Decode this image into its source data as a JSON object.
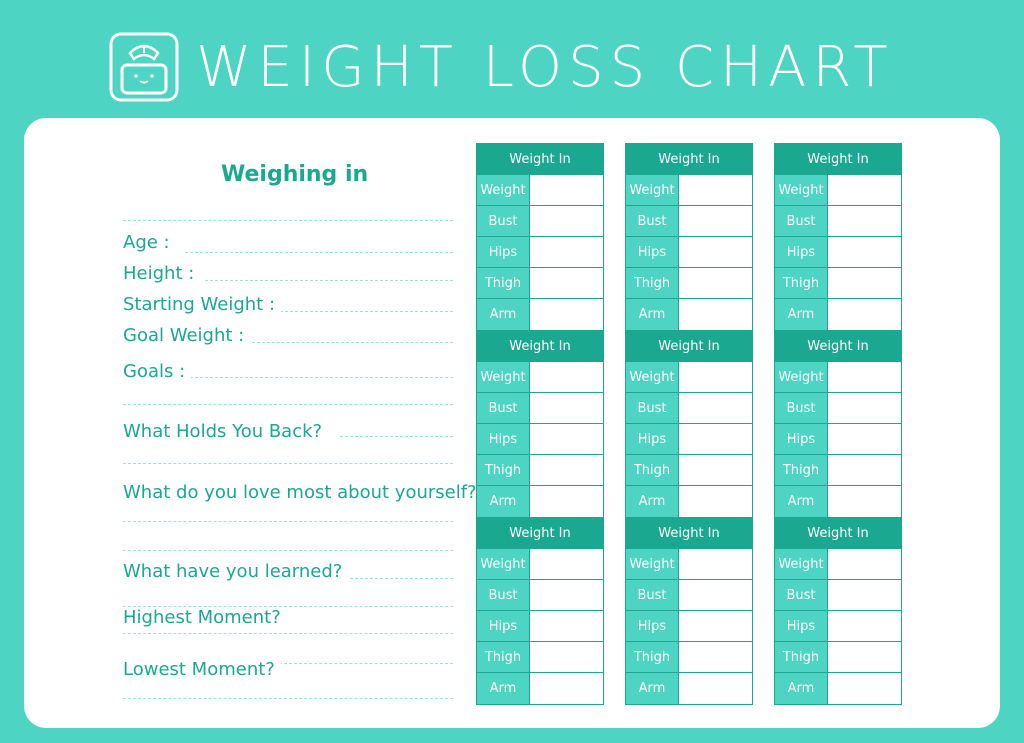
{
  "header": {
    "title": "WEIGHT LOSS CHART",
    "logo_icon": "scale-icon"
  },
  "left": {
    "heading": "Weighing in",
    "fields": [
      {
        "label": "Age :"
      },
      {
        "label": "Height :"
      },
      {
        "label": "Starting Weight :"
      },
      {
        "label": "Goal Weight :"
      },
      {
        "label": "Goals :"
      },
      {
        "label": "What Holds You Back?"
      },
      {
        "label": "What do you love most about yourself?"
      },
      {
        "label": "What have you learned?"
      },
      {
        "label": "Highest Moment?"
      },
      {
        "label": "Lowest Moment?"
      }
    ]
  },
  "tables": {
    "header_label": "Weight In",
    "row_labels": [
      "Weight",
      "Bust",
      "Hips",
      "Thigh",
      "Arm"
    ]
  },
  "colors": {
    "background": "#4dd4c2",
    "accent": "#1aa890",
    "card": "#ffffff"
  }
}
